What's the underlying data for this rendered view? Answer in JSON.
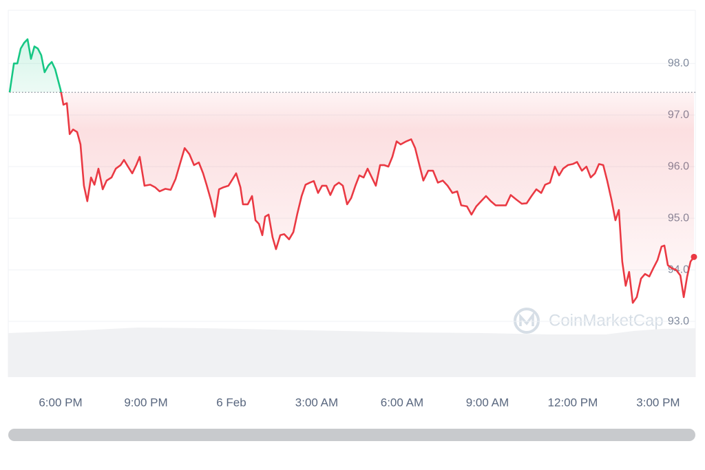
{
  "chart_data": {
    "type": "line",
    "watermark": "CoinMarketCap",
    "x": [
      16.21,
      16.36,
      16.48,
      16.6,
      16.72,
      16.84,
      16.96,
      17.08,
      17.2,
      17.32,
      17.44,
      17.57,
      17.69,
      17.81,
      18.0,
      18.1,
      18.22,
      18.32,
      18.44,
      18.58,
      18.7,
      18.82,
      18.94,
      19.07,
      19.19,
      19.33,
      19.48,
      19.62,
      19.79,
      19.94,
      20.11,
      20.23,
      20.37,
      20.52,
      20.66,
      20.78,
      20.95,
      21.15,
      21.32,
      21.48,
      21.68,
      21.87,
      22.04,
      22.21,
      22.36,
      22.53,
      22.69,
      22.86,
      23.01,
      23.13,
      23.28,
      23.42,
      23.57,
      23.73,
      23.9,
      24.05,
      24.17,
      24.32,
      24.41,
      24.58,
      24.73,
      24.85,
      24.97,
      25.09,
      25.19,
      25.31,
      25.45,
      25.57,
      25.72,
      25.86,
      26.03,
      26.18,
      26.32,
      26.47,
      26.61,
      26.76,
      26.9,
      27.05,
      27.19,
      27.34,
      27.48,
      27.63,
      27.78,
      27.92,
      28.07,
      28.21,
      28.36,
      28.5,
      28.65,
      28.79,
      28.94,
      29.08,
      29.23,
      29.37,
      29.52,
      29.66,
      29.81,
      29.95,
      30.15,
      30.32,
      30.46,
      30.61,
      30.75,
      30.92,
      31.09,
      31.26,
      31.43,
      31.6,
      31.77,
      31.94,
      32.08,
      32.28,
      32.44,
      32.61,
      32.78,
      32.95,
      33.12,
      33.29,
      33.48,
      33.65,
      33.82,
      34.02,
      34.21,
      34.38,
      34.55,
      34.72,
      34.89,
      35.03,
      35.2,
      35.37,
      35.52,
      35.66,
      35.83,
      36.0,
      36.15,
      36.32,
      36.48,
      36.63,
      36.78,
      36.92,
      37.07,
      37.21,
      37.36,
      37.5,
      37.62,
      37.74,
      37.86,
      37.98,
      38.11,
      38.25,
      38.4,
      38.54,
      38.69,
      38.83,
      38.98,
      39.12,
      39.22,
      39.34,
      39.48,
      39.63,
      39.78,
      39.9,
      40.02,
      40.14,
      40.26
    ],
    "series": [
      {
        "color": "#ea3943",
        "up_color": "#16c784",
        "values": [
          97.44,
          98.0,
          98.0,
          98.29,
          98.4,
          98.47,
          98.09,
          98.33,
          98.29,
          98.16,
          97.83,
          97.96,
          98.03,
          97.89,
          97.49,
          97.2,
          97.23,
          96.63,
          96.72,
          96.67,
          96.43,
          95.63,
          95.33,
          95.79,
          95.65,
          95.96,
          95.56,
          95.73,
          95.79,
          95.96,
          96.03,
          96.13,
          96.0,
          95.87,
          96.03,
          96.19,
          95.63,
          95.65,
          95.6,
          95.52,
          95.57,
          95.55,
          95.76,
          96.08,
          96.36,
          96.24,
          96.03,
          96.08,
          95.87,
          95.65,
          95.36,
          95.03,
          95.56,
          95.6,
          95.63,
          95.76,
          95.87,
          95.6,
          95.27,
          95.27,
          95.43,
          94.96,
          94.89,
          94.67,
          95.03,
          95.07,
          94.63,
          94.4,
          94.67,
          94.69,
          94.59,
          94.73,
          95.09,
          95.43,
          95.65,
          95.69,
          95.72,
          95.49,
          95.63,
          95.63,
          95.45,
          95.63,
          95.69,
          95.63,
          95.27,
          95.39,
          95.63,
          95.83,
          95.79,
          95.96,
          95.79,
          95.63,
          96.03,
          96.03,
          96.0,
          96.19,
          96.49,
          96.43,
          96.49,
          96.53,
          96.36,
          96.03,
          95.73,
          95.92,
          95.92,
          95.69,
          95.73,
          95.63,
          95.49,
          95.52,
          95.25,
          95.23,
          95.07,
          95.23,
          95.33,
          95.43,
          95.33,
          95.25,
          95.25,
          95.25,
          95.45,
          95.36,
          95.28,
          95.29,
          95.43,
          95.56,
          95.49,
          95.65,
          95.69,
          96.0,
          95.83,
          95.96,
          96.03,
          96.05,
          96.09,
          95.92,
          96.0,
          95.79,
          95.87,
          96.05,
          96.03,
          95.73,
          95.36,
          94.96,
          95.16,
          94.16,
          93.69,
          93.96,
          93.36,
          93.47,
          93.83,
          93.92,
          93.87,
          94.03,
          94.19,
          94.45,
          94.47,
          94.09,
          94.03,
          94.0,
          93.89,
          93.47,
          93.87,
          94.16,
          94.25
        ]
      }
    ],
    "xlim": [
      16.21,
      40.26
    ],
    "xticks": [
      {
        "value": 18,
        "label": "6:00 PM"
      },
      {
        "value": 21,
        "label": "9:00 PM"
      },
      {
        "value": 24,
        "label": "6 Feb"
      },
      {
        "value": 27,
        "label": "3:00 AM"
      },
      {
        "value": 30,
        "label": "6:00 AM"
      },
      {
        "value": 33,
        "label": "9:00 AM"
      },
      {
        "value": 36,
        "label": "12:00 PM"
      },
      {
        "value": 39,
        "label": "3:00 PM"
      }
    ],
    "ylim": [
      91.92,
      99.03
    ],
    "yticks": [
      {
        "value": 93,
        "label": "93.0"
      },
      {
        "value": 94,
        "label": "94.0"
      },
      {
        "value": 95,
        "label": "95.0"
      },
      {
        "value": 96,
        "label": "96.0"
      },
      {
        "value": 97,
        "label": "97.0"
      },
      {
        "value": 98,
        "label": "98.0"
      }
    ],
    "grid": true
  }
}
